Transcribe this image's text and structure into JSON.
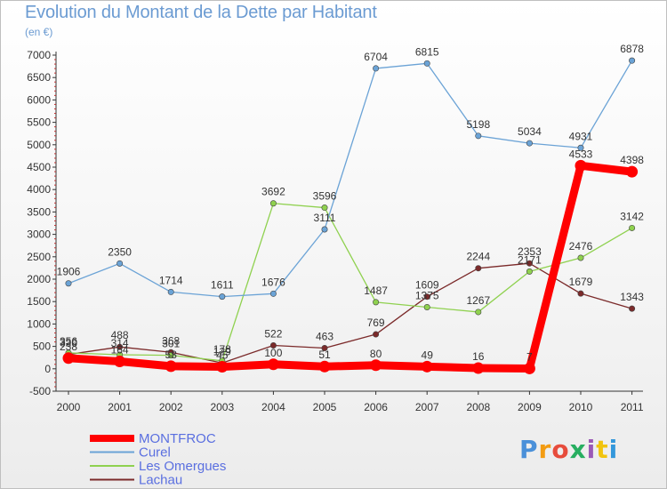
{
  "chart_data": {
    "type": "line",
    "title": "Evolution du Montant de la Dette par Habitant",
    "ylabel": "(en €)",
    "x": [
      "2000",
      "2001",
      "2002",
      "2003",
      "2004",
      "2005",
      "2006",
      "2007",
      "2008",
      "2009",
      "2010",
      "2011"
    ],
    "ylim": [
      -500,
      7000
    ],
    "yticks": [
      -500,
      0,
      500,
      1000,
      1500,
      2000,
      2500,
      3000,
      3500,
      4000,
      4500,
      5000,
      5500,
      6000,
      6500,
      7000
    ],
    "grid": false,
    "legend_position": "bottom-left",
    "series": [
      {
        "name": "MONTFROC",
        "color": "#ff0000",
        "values": [
          238,
          164,
          58,
          45,
          100,
          51,
          80,
          49,
          16,
          7,
          4533,
          4398
        ],
        "labels": [
          "238",
          "164",
          "58",
          "45",
          "100",
          "51",
          "80",
          "49",
          "16",
          "7",
          "4533",
          "4398"
        ]
      },
      {
        "name": "Curel",
        "color": "#6ba3d6",
        "values": [
          1906,
          2350,
          1714,
          1611,
          1676,
          3111,
          6704,
          6815,
          5198,
          5034,
          4931,
          6878
        ],
        "labels": [
          "1906",
          "2350",
          "1714",
          "1611",
          "1676",
          "3111",
          "6704",
          "6815",
          "5198",
          "5034",
          "4931",
          "6878"
        ]
      },
      {
        "name": "Les Omergues",
        "color": "#8fd14f",
        "values": [
          356,
          314,
          301,
          178,
          3692,
          3596,
          1487,
          1375,
          1267,
          2171,
          2476,
          3142
        ],
        "labels": [
          "356",
          "314",
          "301",
          "178",
          "3692",
          "3596",
          "1487",
          "1375",
          "1267",
          "2171",
          "2476",
          "3142"
        ]
      },
      {
        "name": "Lachau",
        "color": "#7b2a2a",
        "values": [
          320,
          488,
          368,
          129,
          522,
          463,
          769,
          1609,
          2244,
          2353,
          1679,
          1343
        ],
        "labels": [
          "320",
          "488",
          "368",
          "129",
          "522",
          "463",
          "769",
          "1609",
          "2244",
          "2353",
          "1679",
          "1343"
        ]
      }
    ]
  },
  "logo": {
    "text": "Proxiti",
    "colors": [
      "#4a90d9",
      "#f39c12",
      "#e74c3c",
      "#27ae60",
      "#9b59b6",
      "#f1c40f",
      "#3498db"
    ]
  }
}
